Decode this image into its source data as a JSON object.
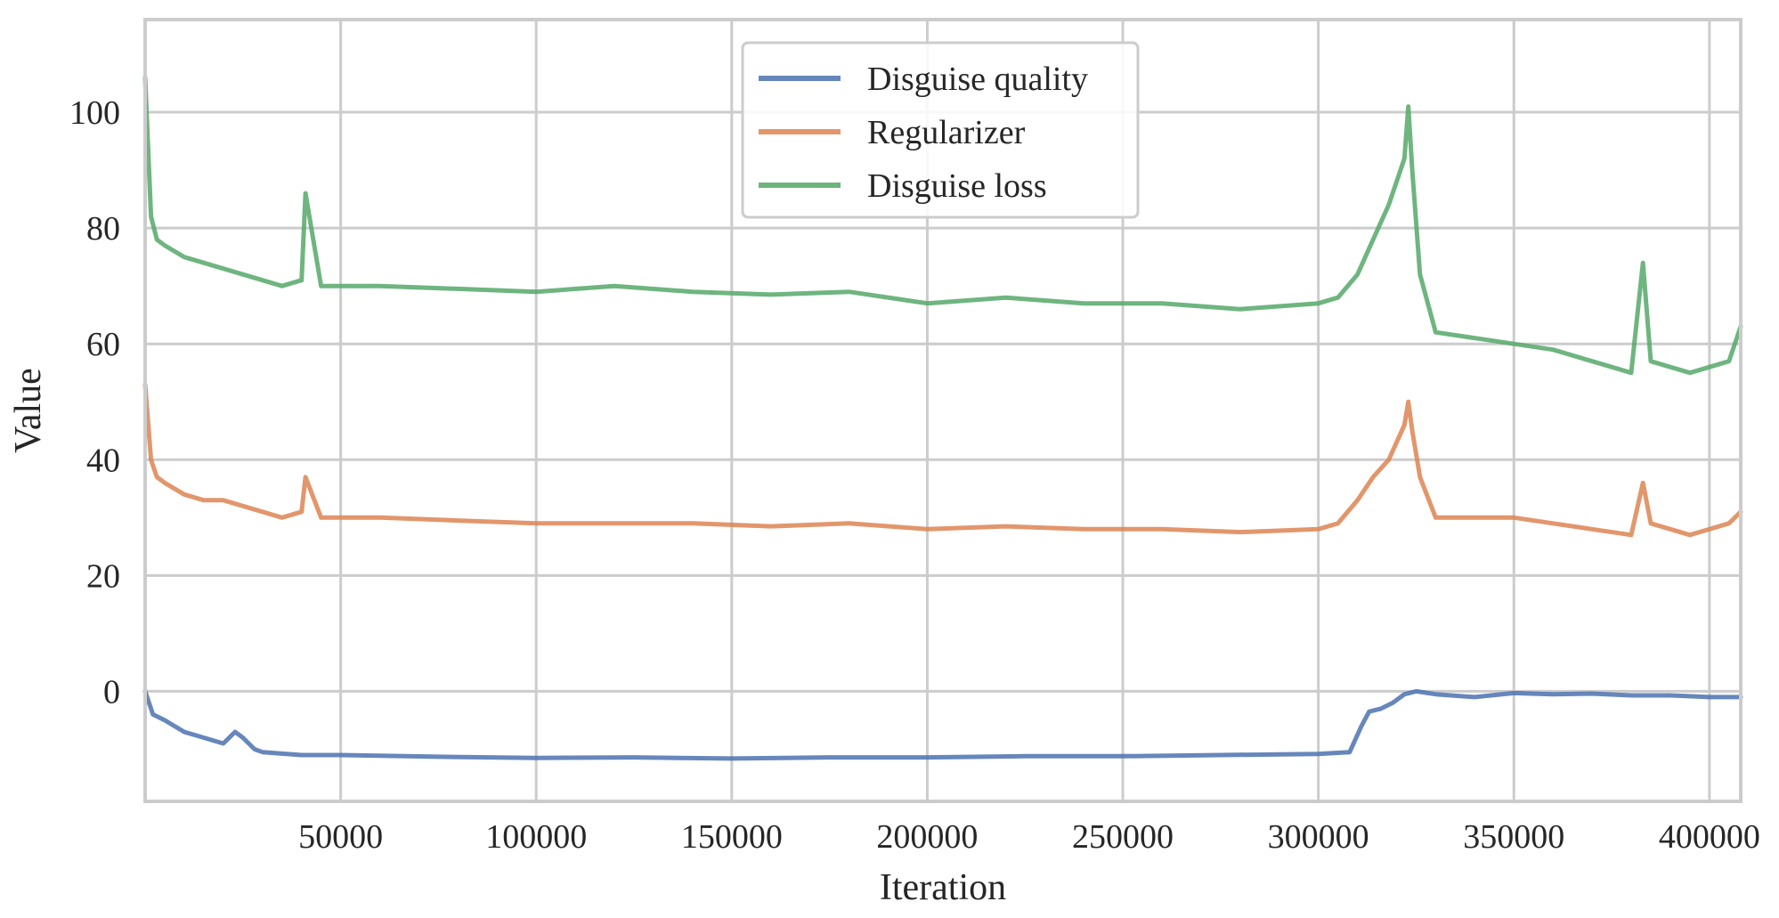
{
  "chart_data": {
    "type": "line",
    "title": "",
    "xlabel": "Iteration",
    "ylabel": "Value",
    "xlim": [
      0,
      408000
    ],
    "ylim": [
      -19,
      116
    ],
    "x_ticks": [
      50000,
      100000,
      150000,
      200000,
      250000,
      300000,
      350000,
      400000
    ],
    "x_tick_labels": [
      "50000",
      "100000",
      "150000",
      "200000",
      "250000",
      "300000",
      "350000",
      "400000"
    ],
    "y_ticks": [
      0,
      20,
      40,
      60,
      80,
      100
    ],
    "y_tick_labels": [
      "0",
      "20",
      "40",
      "60",
      "80",
      "100"
    ],
    "grid": true,
    "legend_position": "top-center",
    "series": [
      {
        "name": "Disguise quality",
        "color": "#4c72b0",
        "x": [
          0,
          2000,
          5000,
          10000,
          15000,
          20000,
          23000,
          25000,
          28000,
          30000,
          40000,
          50000,
          75000,
          100000,
          125000,
          150000,
          175000,
          200000,
          225000,
          250000,
          275000,
          300000,
          308000,
          311000,
          313000,
          316000,
          319000,
          322000,
          325000,
          330000,
          340000,
          350000,
          360000,
          370000,
          380000,
          390000,
          400000,
          408000
        ],
        "values": [
          0,
          -4,
          -5,
          -7,
          -8,
          -9,
          -7,
          -8,
          -10,
          -10.5,
          -11,
          -11,
          -11.3,
          -11.5,
          -11.4,
          -11.6,
          -11.4,
          -11.4,
          -11.2,
          -11.2,
          -11,
          -10.8,
          -10.5,
          -6,
          -3.5,
          -3,
          -2,
          -0.5,
          0,
          -0.5,
          -1,
          -0.3,
          -0.5,
          -0.4,
          -0.7,
          -0.7,
          -1,
          -1
        ]
      },
      {
        "name": "Regularizer",
        "color": "#dd8452",
        "x": [
          0,
          1500,
          3000,
          5000,
          10000,
          15000,
          20000,
          25000,
          30000,
          35000,
          40000,
          41000,
          45000,
          60000,
          80000,
          100000,
          120000,
          140000,
          160000,
          180000,
          200000,
          220000,
          240000,
          260000,
          280000,
          300000,
          305000,
          310000,
          314000,
          318000,
          320000,
          322000,
          323000,
          324000,
          326000,
          330000,
          340000,
          350000,
          360000,
          370000,
          380000,
          383000,
          385000,
          390000,
          395000,
          400000,
          405000,
          408000
        ],
        "values": [
          53,
          40,
          37,
          36,
          34,
          33,
          33,
          32,
          31,
          30,
          31,
          37,
          30,
          30,
          29.5,
          29,
          29,
          29,
          28.5,
          29,
          28,
          28.5,
          28,
          28,
          27.5,
          28,
          29,
          33,
          37,
          40,
          43,
          46,
          50,
          45,
          37,
          30,
          30,
          30,
          29,
          28,
          27,
          36,
          29,
          28,
          27,
          28,
          29,
          31
        ]
      },
      {
        "name": "Disguise loss",
        "color": "#55a868",
        "x": [
          0,
          1500,
          3000,
          5000,
          10000,
          15000,
          20000,
          25000,
          30000,
          35000,
          40000,
          41000,
          45000,
          60000,
          80000,
          100000,
          120000,
          140000,
          160000,
          180000,
          200000,
          220000,
          240000,
          260000,
          280000,
          300000,
          305000,
          310000,
          314000,
          318000,
          320000,
          322000,
          323000,
          324000,
          326000,
          330000,
          340000,
          350000,
          360000,
          370000,
          380000,
          383000,
          385000,
          390000,
          395000,
          400000,
          405000,
          408000
        ],
        "values": [
          106,
          82,
          78,
          77,
          75,
          74,
          73,
          72,
          71,
          70,
          71,
          86,
          70,
          70,
          69.5,
          69,
          70,
          69,
          68.5,
          69,
          67,
          68,
          67,
          67,
          66,
          67,
          68,
          72,
          78,
          84,
          88,
          92,
          101,
          90,
          72,
          62,
          61,
          60,
          59,
          57,
          55,
          74,
          57,
          56,
          55,
          56,
          57,
          63
        ]
      }
    ]
  }
}
